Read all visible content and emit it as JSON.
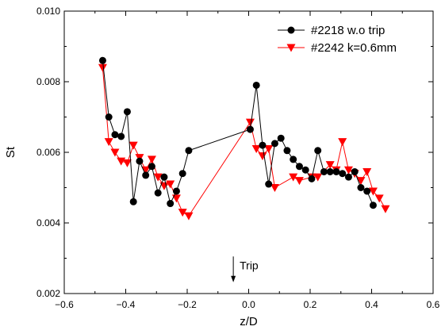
{
  "chart_data": {
    "type": "scatter",
    "xlabel": "z/D",
    "ylabel": "St",
    "xlim": [
      -0.6,
      0.6
    ],
    "ylim": [
      0.002,
      0.01
    ],
    "x_ticks": [
      -0.6,
      -0.4,
      -0.2,
      0.0,
      0.2,
      0.4,
      0.6
    ],
    "x_tick_labels": [
      "−0.6",
      "−0.4",
      "−0.2",
      "0.0",
      "0.2",
      "0.4",
      "0.6"
    ],
    "y_ticks": [
      0.002,
      0.004,
      0.006,
      0.008,
      0.01
    ],
    "y_tick_labels": [
      "0.002",
      "0.004",
      "0.006",
      "0.008",
      "0.010"
    ],
    "grid": false,
    "legend_position": "top-right",
    "annotation": {
      "text": "Trip",
      "x": -0.05,
      "y_from": 0.00305,
      "y_to": 0.00232
    },
    "series": [
      {
        "name": "#2218 w.o trip",
        "color": "#000000",
        "marker": "circle",
        "points": [
          [
            -0.475,
            0.0086
          ],
          [
            -0.455,
            0.007
          ],
          [
            -0.435,
            0.0065
          ],
          [
            -0.415,
            0.00645
          ],
          [
            -0.395,
            0.00715
          ],
          [
            -0.375,
            0.0046
          ],
          [
            -0.355,
            0.00575
          ],
          [
            -0.335,
            0.00535
          ],
          [
            -0.315,
            0.0056
          ],
          [
            -0.295,
            0.00485
          ],
          [
            -0.275,
            0.0053
          ],
          [
            -0.255,
            0.00455
          ],
          [
            -0.235,
            0.0049
          ],
          [
            -0.215,
            0.0054
          ],
          [
            -0.195,
            0.00605
          ],
          [
            0.005,
            0.00665
          ],
          [
            0.025,
            0.0079
          ],
          [
            0.045,
            0.0062
          ],
          [
            0.065,
            0.0051
          ],
          [
            0.085,
            0.00625
          ],
          [
            0.105,
            0.0064
          ],
          [
            0.125,
            0.00605
          ],
          [
            0.145,
            0.0058
          ],
          [
            0.165,
            0.0056
          ],
          [
            0.185,
            0.0055
          ],
          [
            0.205,
            0.00525
          ],
          [
            0.225,
            0.00605
          ],
          [
            0.245,
            0.00545
          ],
          [
            0.265,
            0.00545
          ],
          [
            0.285,
            0.00545
          ],
          [
            0.305,
            0.0054
          ],
          [
            0.325,
            0.0053
          ],
          [
            0.345,
            0.00545
          ],
          [
            0.365,
            0.005
          ],
          [
            0.385,
            0.0049
          ],
          [
            0.405,
            0.0045
          ]
        ]
      },
      {
        "name": "#2242 k=0.6mm",
        "color": "#ff0000",
        "marker": "triangle-down",
        "points": [
          [
            -0.475,
            0.0084
          ],
          [
            -0.455,
            0.0063
          ],
          [
            -0.435,
            0.006
          ],
          [
            -0.415,
            0.00575
          ],
          [
            -0.395,
            0.0057
          ],
          [
            -0.375,
            0.0062
          ],
          [
            -0.355,
            0.00585
          ],
          [
            -0.335,
            0.0055
          ],
          [
            -0.315,
            0.0058
          ],
          [
            -0.295,
            0.0053
          ],
          [
            -0.275,
            0.00505
          ],
          [
            -0.255,
            0.0051
          ],
          [
            -0.235,
            0.0047
          ],
          [
            -0.215,
            0.0043
          ],
          [
            -0.195,
            0.0042
          ],
          [
            0.005,
            0.00685
          ],
          [
            0.025,
            0.0061
          ],
          [
            0.045,
            0.0059
          ],
          [
            0.065,
            0.0061
          ],
          [
            0.085,
            0.005
          ],
          [
            0.145,
            0.0053
          ],
          [
            0.165,
            0.0052
          ],
          [
            0.205,
            0.0053
          ],
          [
            0.225,
            0.0053
          ],
          [
            0.265,
            0.00565
          ],
          [
            0.285,
            0.0055
          ],
          [
            0.305,
            0.0063
          ],
          [
            0.325,
            0.0055
          ],
          [
            0.345,
            0.0054
          ],
          [
            0.365,
            0.0052
          ],
          [
            0.385,
            0.00545
          ],
          [
            0.405,
            0.0049
          ],
          [
            0.425,
            0.0047
          ],
          [
            0.445,
            0.0044
          ]
        ]
      }
    ]
  }
}
